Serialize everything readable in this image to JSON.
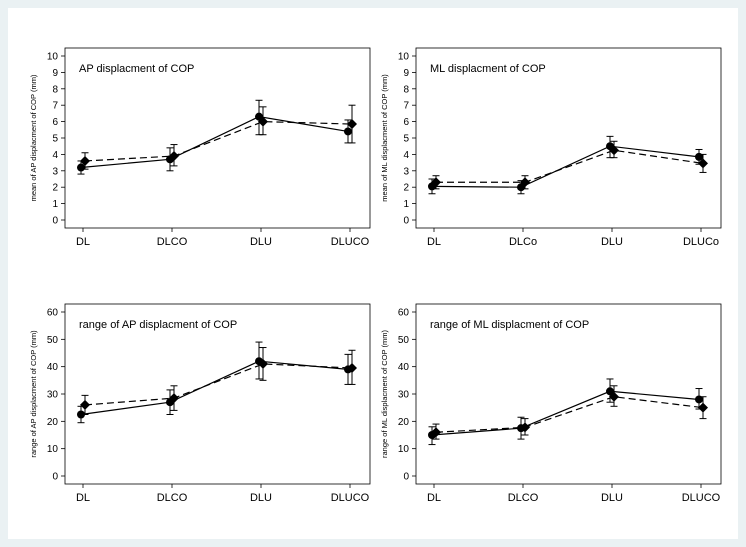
{
  "chart_data": [
    {
      "type": "line",
      "title": "AP displacment of COP",
      "ylabel": "mean of AP displacment of COP (mm)",
      "xlabel": "",
      "categories": [
        "DL",
        "DLCO",
        "DLU",
        "DLUCO"
      ],
      "ylim": [
        0,
        10
      ],
      "yticks": [
        0,
        1,
        2,
        3,
        4,
        5,
        6,
        7,
        8,
        9,
        10
      ],
      "series": [
        {
          "name": "solid (circle)",
          "marker": "circle",
          "dash": "solid",
          "values": [
            3.2,
            3.7,
            6.3,
            5.4
          ],
          "err_low": [
            2.8,
            3.0,
            5.2,
            4.7
          ],
          "err_high": [
            3.6,
            4.4,
            7.3,
            6.1
          ]
        },
        {
          "name": "dashed (diamond)",
          "marker": "diamond",
          "dash": "dashed",
          "values": [
            3.6,
            3.9,
            6.0,
            5.85
          ],
          "err_low": [
            3.1,
            3.3,
            5.2,
            4.7
          ],
          "err_high": [
            4.1,
            4.6,
            6.9,
            7.0
          ]
        }
      ]
    },
    {
      "type": "line",
      "title": "ML displacment of COP",
      "ylabel": "mean of ML displacment of COP (mm)",
      "xlabel": "",
      "categories": [
        "DL",
        "DLCo",
        "DLU",
        "DLUCo"
      ],
      "ylim": [
        0,
        10
      ],
      "yticks": [
        0,
        1,
        2,
        3,
        4,
        5,
        6,
        7,
        8,
        9,
        10
      ],
      "series": [
        {
          "name": "solid (circle)",
          "marker": "circle",
          "dash": "solid",
          "values": [
            2.05,
            2.0,
            4.5,
            3.85
          ],
          "err_low": [
            1.6,
            1.6,
            3.8,
            3.4
          ],
          "err_high": [
            2.5,
            2.4,
            5.1,
            4.3
          ]
        },
        {
          "name": "dashed (diamond)",
          "marker": "diamond",
          "dash": "dashed",
          "values": [
            2.3,
            2.3,
            4.25,
            3.45
          ],
          "err_low": [
            1.9,
            1.9,
            3.8,
            2.9
          ],
          "err_high": [
            2.7,
            2.7,
            4.8,
            4.0
          ]
        }
      ]
    },
    {
      "type": "line",
      "title": "range of  AP displacment of COP",
      "ylabel": "range of  AP displacment of COP (mm)",
      "xlabel": "",
      "categories": [
        "DL",
        "DLCO",
        "DLU",
        "DLUCO"
      ],
      "ylim": [
        0,
        60
      ],
      "yticks": [
        0,
        10,
        20,
        30,
        40,
        50,
        60
      ],
      "series": [
        {
          "name": "solid (circle)",
          "marker": "circle",
          "dash": "solid",
          "values": [
            22.5,
            27.0,
            42.0,
            39.0
          ],
          "err_low": [
            19.5,
            22.5,
            35.5,
            33.5
          ],
          "err_high": [
            25.5,
            31.5,
            49.0,
            44.5
          ]
        },
        {
          "name": "dashed (diamond)",
          "marker": "diamond",
          "dash": "dashed",
          "values": [
            26.0,
            28.5,
            41.0,
            39.5
          ],
          "err_low": [
            22.5,
            24.0,
            35.0,
            33.5
          ],
          "err_high": [
            29.5,
            33.0,
            47.0,
            46.0
          ]
        }
      ]
    },
    {
      "type": "line",
      "title": "range of  ML displacment of COP",
      "ylabel": "range of  ML displacment of COP (mm)",
      "xlabel": "",
      "categories": [
        "DL",
        "DLCO",
        "DLU",
        "DLUCO"
      ],
      "ylim": [
        0,
        60
      ],
      "yticks": [
        0,
        10,
        20,
        30,
        40,
        50,
        60
      ],
      "series": [
        {
          "name": "solid (circle)",
          "marker": "circle",
          "dash": "solid",
          "values": [
            15.0,
            17.5,
            31.0,
            28.0
          ],
          "err_low": [
            11.5,
            13.5,
            27.0,
            24.5
          ],
          "err_high": [
            18.0,
            21.5,
            35.5,
            32.0
          ]
        },
        {
          "name": "dashed (diamond)",
          "marker": "diamond",
          "dash": "dashed",
          "values": [
            16.0,
            17.8,
            29.0,
            25.0
          ],
          "err_low": [
            13.5,
            15.0,
            25.5,
            21.0
          ],
          "err_high": [
            19.0,
            21.0,
            33.0,
            29.0
          ]
        }
      ]
    }
  ]
}
